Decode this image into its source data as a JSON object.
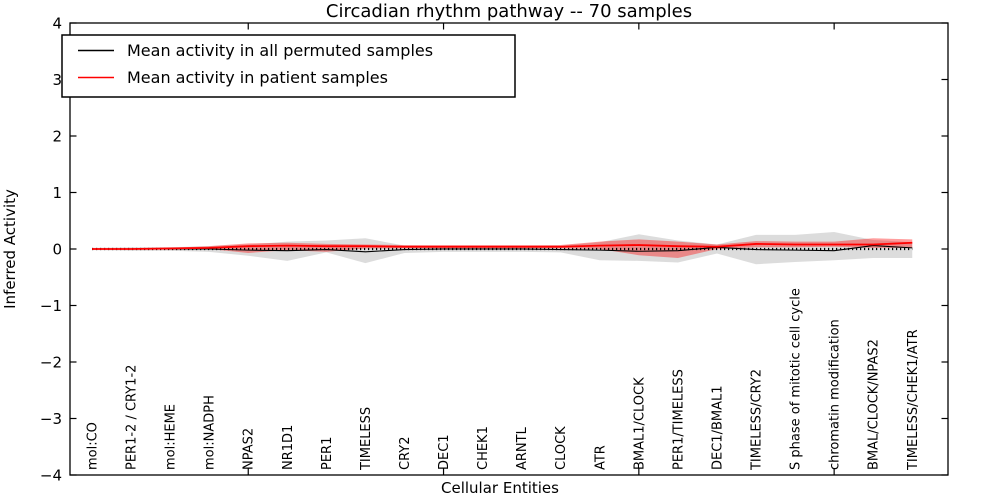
{
  "header": {
    "title": "Circadian rhythm pathway -- 70 samples"
  },
  "axes": {
    "ylabel": "Inferred Activity",
    "xlabel": "Cellular Entities"
  },
  "legend": {
    "items": [
      {
        "label": "Mean activity in all permuted samples",
        "color": "#000000"
      },
      {
        "label": "Mean activity in patient samples",
        "color": "#ff0000"
      }
    ]
  },
  "chart_data": {
    "type": "line",
    "title": "Circadian rhythm pathway -- 70 samples",
    "xlabel": "Cellular Entities",
    "ylabel": "Inferred Activity",
    "ylim": [
      -4,
      4
    ],
    "yticks": [
      4,
      3,
      2,
      1,
      0,
      -1,
      -2,
      -3,
      -4
    ],
    "xtick_category_indices": [
      4,
      9,
      14,
      19
    ],
    "grid": false,
    "legend_position": "upper left",
    "zero_line": true,
    "categories": [
      "mol:CO",
      "PER1-2 / CRY1-2",
      "mol:HEME",
      "mol:NADPH",
      "NPAS2",
      "NR1D1",
      "PER1",
      "TIMELESS",
      "CRY2",
      "DEC1",
      "CHEK1",
      "ARNTL",
      "CLOCK",
      "ATR",
      "BMAL1/CLOCK",
      "PER1/TIMELESS",
      "DEC1/BMAL1",
      "TIMELESS/CRY2",
      "S phase of mitotic cell cycle",
      "chromatin modification",
      "BMAL/CLOCK/NPAS2",
      "TIMELESS/CHEK1/ATR"
    ],
    "series": [
      {
        "name": "Mean activity in all permuted samples",
        "color": "#000000",
        "width": 1.1,
        "values": [
          0,
          0,
          0,
          0,
          -0.02,
          -0.03,
          -0.01,
          -0.05,
          -0.01,
          0,
          0,
          0,
          -0.01,
          -0.02,
          -0.04,
          -0.03,
          0.03,
          -0.01,
          -0.02,
          -0.03,
          0.06,
          0.02
        ]
      },
      {
        "name": "Mean activity in patient samples",
        "color": "#ff0000",
        "width": 1.8,
        "values": [
          0,
          0,
          0.01,
          0.02,
          0.05,
          0.06,
          0.05,
          0.05,
          0.04,
          0.04,
          0.04,
          0.04,
          0.04,
          0.06,
          0.07,
          0.05,
          0.04,
          0.09,
          0.08,
          0.08,
          0.08,
          0.11
        ]
      }
    ],
    "bands": [
      {
        "name": "permuted-samples-range",
        "fill": "rgba(128,128,128,0.28)",
        "lower": [
          -0.02,
          -0.03,
          -0.03,
          -0.05,
          -0.12,
          -0.21,
          -0.06,
          -0.25,
          -0.07,
          -0.05,
          -0.05,
          -0.05,
          -0.06,
          -0.2,
          -0.21,
          -0.24,
          -0.08,
          -0.27,
          -0.23,
          -0.2,
          -0.16,
          -0.16
        ],
        "upper": [
          0.02,
          0.03,
          0.03,
          0.05,
          0.08,
          0.13,
          0.15,
          0.19,
          0.06,
          0.05,
          0.05,
          0.05,
          0.06,
          0.12,
          0.26,
          0.15,
          0.08,
          0.25,
          0.25,
          0.3,
          0.16,
          0.12
        ]
      },
      {
        "name": "patient-samples-range",
        "fill": "rgba(255,0,0,0.38)",
        "lower": [
          -0.01,
          -0.01,
          -0.01,
          0,
          -0.07,
          -0.02,
          -0.05,
          0.01,
          0.01,
          0.01,
          0.01,
          0.01,
          0.01,
          0,
          -0.11,
          -0.16,
          0,
          0.03,
          0.03,
          0.04,
          0.02,
          0.02
        ],
        "upper": [
          0.01,
          0.01,
          0.02,
          0.05,
          0.1,
          0.11,
          0.09,
          0.08,
          0.07,
          0.07,
          0.07,
          0.07,
          0.07,
          0.13,
          0.17,
          0.13,
          0.08,
          0.14,
          0.13,
          0.13,
          0.19,
          0.17
        ]
      }
    ]
  }
}
